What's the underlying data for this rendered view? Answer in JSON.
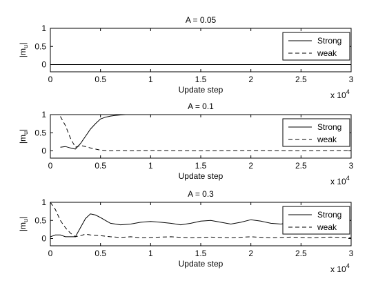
{
  "chart_data": [
    {
      "type": "line",
      "title": "A = 0.05",
      "xlabel": "Update step",
      "ylabel": "|m_u|",
      "xlim": [
        0,
        3
      ],
      "ylim": [
        -0.2,
        1
      ],
      "x_multiplier": "x 10^4",
      "xticks": [
        "0",
        "0.5",
        "1",
        "1.5",
        "2",
        "2.5",
        "3"
      ],
      "yticks": [
        "0",
        "0.5",
        "1"
      ],
      "legend_position": "top-right",
      "series": [
        {
          "name": "Strong",
          "style": "solid",
          "x": [
            0,
            3
          ],
          "y": [
            0,
            0
          ]
        },
        {
          "name": "weak",
          "style": "dashed",
          "x": [
            0,
            3
          ],
          "y": [
            0,
            0
          ]
        }
      ]
    },
    {
      "type": "line",
      "title": "A = 0.1",
      "xlabel": "Update step",
      "ylabel": "|m_u|",
      "xlim": [
        0,
        3
      ],
      "ylim": [
        -0.2,
        1
      ],
      "x_multiplier": "x 10^4",
      "xticks": [
        "0",
        "0.5",
        "1",
        "1.5",
        "2",
        "2.5",
        "3"
      ],
      "yticks": [
        "0",
        "0.5",
        "1"
      ],
      "legend_position": "top-right",
      "series": [
        {
          "name": "Strong",
          "style": "solid",
          "x": [
            0.1,
            0.15,
            0.2,
            0.25,
            0.3,
            0.35,
            0.4,
            0.45,
            0.5,
            0.55,
            0.6,
            0.65,
            0.7,
            0.75
          ],
          "y": [
            0.1,
            0.12,
            0.08,
            0.05,
            0.2,
            0.4,
            0.6,
            0.75,
            0.88,
            0.93,
            0.96,
            0.98,
            0.99,
            1.0
          ]
        },
        {
          "name": "weak",
          "style": "dashed",
          "x": [
            0.1,
            0.15,
            0.2,
            0.25,
            0.3,
            0.35,
            0.4,
            0.45,
            0.5,
            0.55,
            0.6,
            0.7,
            0.8,
            1.0,
            1.5,
            2.0,
            2.5,
            3.0
          ],
          "y": [
            0.95,
            0.7,
            0.35,
            0.1,
            0.15,
            0.12,
            0.08,
            0.05,
            0.02,
            0.01,
            0.0,
            0.01,
            0.0,
            0.01,
            0.0,
            0.01,
            0.0,
            0.01
          ]
        }
      ]
    },
    {
      "type": "line",
      "title": "A = 0.3",
      "xlabel": "Update step",
      "ylabel": "|m_u|",
      "xlim": [
        0,
        3
      ],
      "ylim": [
        -0.2,
        1
      ],
      "x_multiplier": "x 10^4",
      "xticks": [
        "0",
        "0.5",
        "1",
        "1.5",
        "2",
        "2.5",
        "3"
      ],
      "yticks": [
        "0",
        "0.5",
        "1"
      ],
      "legend_position": "top-right",
      "series": [
        {
          "name": "Strong",
          "style": "solid",
          "x": [
            0,
            0.05,
            0.1,
            0.15,
            0.2,
            0.25,
            0.3,
            0.35,
            0.4,
            0.45,
            0.5,
            0.55,
            0.6,
            0.7,
            0.8,
            0.9,
            1.0,
            1.1,
            1.2,
            1.3,
            1.4,
            1.5,
            1.6,
            1.7,
            1.8,
            1.9,
            2.0,
            2.1,
            2.2,
            2.3,
            2.4,
            2.5,
            2.6,
            2.7,
            2.8,
            2.9,
            3.0
          ],
          "y": [
            0.05,
            0.1,
            0.1,
            0.05,
            0.05,
            0.05,
            0.3,
            0.55,
            0.68,
            0.65,
            0.58,
            0.5,
            0.42,
            0.38,
            0.4,
            0.45,
            0.47,
            0.45,
            0.42,
            0.38,
            0.42,
            0.48,
            0.5,
            0.45,
            0.4,
            0.45,
            0.52,
            0.48,
            0.42,
            0.4,
            0.45,
            0.48,
            0.42,
            0.4,
            0.42,
            0.48,
            0.5
          ]
        },
        {
          "name": "weak",
          "style": "dashed",
          "x": [
            0,
            0.05,
            0.1,
            0.15,
            0.2,
            0.25,
            0.3,
            0.35,
            0.4,
            0.5,
            0.6,
            0.7,
            0.8,
            0.9,
            1.0,
            1.2,
            1.4,
            1.6,
            1.8,
            2.0,
            2.2,
            2.4,
            2.6,
            2.8,
            3.0
          ],
          "y": [
            1.0,
            0.8,
            0.5,
            0.3,
            0.15,
            0.05,
            0.08,
            0.12,
            0.1,
            0.08,
            0.05,
            0.03,
            0.05,
            0.02,
            0.03,
            0.05,
            0.02,
            0.04,
            0.02,
            0.05,
            0.02,
            0.04,
            0.02,
            0.04,
            0.02
          ]
        }
      ]
    }
  ]
}
